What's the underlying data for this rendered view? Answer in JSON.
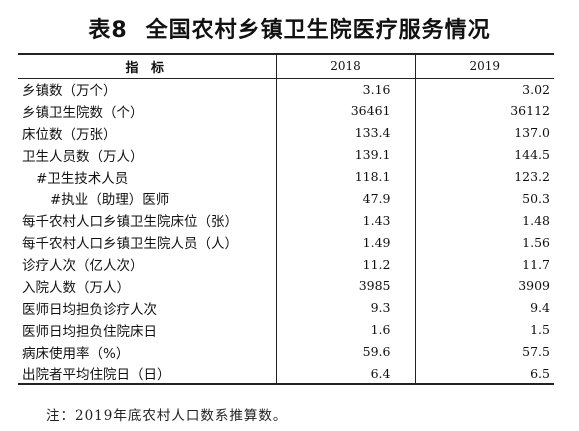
{
  "title": {
    "table_no": "表8",
    "text": "全国农村乡镇卫生院医疗服务情况"
  },
  "header": {
    "indicator": "指 标",
    "year1": "2018",
    "year2": "2019"
  },
  "rows": [
    {
      "label": "乡镇数（万个）",
      "v2018": "3.16",
      "v2019": "3.02"
    },
    {
      "label": "乡镇卫生院数（个）",
      "v2018": "36461",
      "v2019": "36112"
    },
    {
      "label": "床位数（万张）",
      "v2018": "133.4",
      "v2019": "137.0"
    },
    {
      "label": "卫生人员数（万人）",
      "v2018": "139.1",
      "v2019": "144.5"
    },
    {
      "label": "#卫生技术人员",
      "v2018": "118.1",
      "v2019": "123.2"
    },
    {
      "label": "#执业（助理）医师",
      "v2018": "47.9",
      "v2019": "50.3"
    },
    {
      "label": "每千农村人口乡镇卫生院床位（张）",
      "v2018": "1.43",
      "v2019": "1.48"
    },
    {
      "label": "每千农村人口乡镇卫生院人员（人）",
      "v2018": "1.49",
      "v2019": "1.56"
    },
    {
      "label": "诊疗人次（亿人次）",
      "v2018": "11.2",
      "v2019": "11.7"
    },
    {
      "label": "入院人数（万人）",
      "v2018": "3985",
      "v2019": "3909"
    },
    {
      "label": "医师日均担负诊疗人次",
      "v2018": "9.3",
      "v2019": "9.4"
    },
    {
      "label": "医师日均担负住院床日",
      "v2018": "1.6",
      "v2019": "1.5"
    },
    {
      "label": "病床使用率（%）",
      "v2018": "59.6",
      "v2019": "57.5"
    },
    {
      "label": "出院者平均住院日（日）",
      "v2018": "6.4",
      "v2019": "6.5"
    }
  ],
  "note": "注：2019年底农村人口数系推算数。"
}
